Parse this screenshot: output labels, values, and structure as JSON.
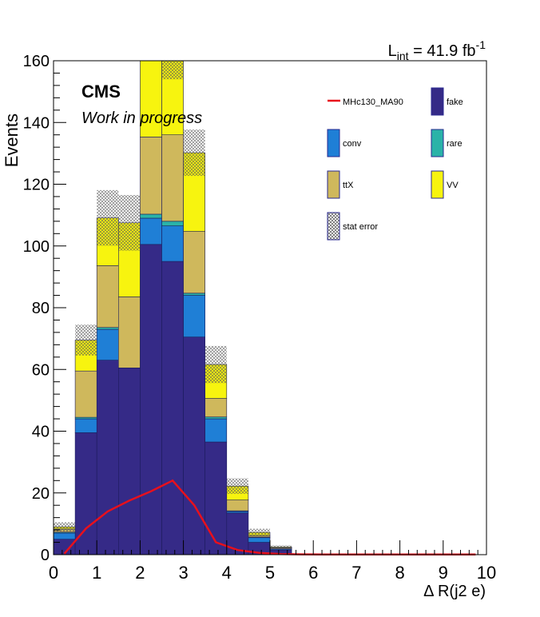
{
  "chart_data": {
    "type": "bar",
    "stacked": true,
    "title": "",
    "xlabel": "Δ R(j2 e)",
    "ylabel": "Events",
    "xlim": [
      0,
      10
    ],
    "ylim": [
      0,
      160
    ],
    "luminosity_label": "L",
    "luminosity_sub": "int",
    "luminosity_value": " = 41.9 fb",
    "luminosity_sup": "-1",
    "experiment_label": "CMS",
    "status_label": "Work in progress",
    "x_ticks": [
      "0",
      "1",
      "2",
      "3",
      "4",
      "5",
      "6",
      "7",
      "8",
      "9",
      "10"
    ],
    "y_ticks": [
      "0",
      "20",
      "40",
      "60",
      "80",
      "100",
      "120",
      "140",
      "160"
    ],
    "bin_edges": [
      0,
      0.5,
      1,
      1.5,
      2,
      2.5,
      3,
      3.5,
      4,
      4.5,
      5,
      5.5,
      6,
      6.5,
      7,
      7.5,
      8,
      8.5,
      9,
      9.5,
      10
    ],
    "series": [
      {
        "name": "fake",
        "color": "#352a87",
        "values": [
          5,
          39.5,
          63,
          60.5,
          100.5,
          95,
          70.5,
          36.5,
          13.5,
          4,
          1.5,
          0,
          0,
          0,
          0,
          0,
          0,
          0,
          0,
          0
        ]
      },
      {
        "name": "conv",
        "color": "#1f7fd6",
        "values": [
          2,
          4.5,
          10,
          0,
          8.5,
          11.5,
          13.5,
          7.5,
          0.5,
          1.5,
          0.3,
          0,
          0,
          0,
          0,
          0,
          0,
          0,
          0,
          0
        ]
      },
      {
        "name": "rare",
        "color": "#2ab3a8",
        "values": [
          0.3,
          0.5,
          0.6,
          0,
          1.3,
          1.5,
          0.7,
          0.6,
          0.2,
          0.2,
          0.1,
          0,
          0,
          0,
          0,
          0,
          0,
          0,
          0,
          0
        ]
      },
      {
        "name": "ttX",
        "color": "#cfb85c",
        "values": [
          1,
          15,
          20,
          23,
          25,
          28,
          20,
          6,
          3.5,
          0.5,
          0.3,
          0,
          0,
          0,
          0,
          0,
          0,
          0,
          0,
          0
        ]
      },
      {
        "name": "VV",
        "color": "#f7f40f",
        "values": [
          0.7,
          10,
          15.5,
          24,
          34.5,
          26.5,
          25.5,
          11,
          4.5,
          1,
          0.3,
          0,
          0,
          0,
          0,
          0,
          0,
          0,
          0,
          0
        ]
      }
    ],
    "stat_error": [
      1.5,
      5,
      9,
      9,
      9.5,
      8.5,
      7.5,
      6,
      2.5,
      1.2,
      0.5,
      0,
      0,
      0,
      0,
      0,
      0,
      0,
      0,
      0
    ],
    "signal": {
      "name": "MHc130_MA90",
      "color": "#e8101c",
      "x": [
        0.25,
        0.75,
        1.25,
        1.75,
        2.25,
        2.75,
        3.25,
        3.75,
        4.25,
        4.75,
        5.25,
        5.75,
        6.25,
        6.75,
        7.25,
        7.75,
        8.25,
        8.75,
        9.25,
        9.75
      ],
      "y": [
        0.3,
        8.5,
        14,
        17.5,
        20.5,
        24,
        16,
        4,
        1.5,
        0.6,
        0.2,
        0.1,
        0.05,
        0.05,
        0.05,
        0.05,
        0.05,
        0.05,
        0.05,
        0.05
      ]
    },
    "legend": {
      "placement": "top-right",
      "entries": [
        {
          "label": "MHc130_MA90",
          "kind": "line",
          "color": "#e8101c"
        },
        {
          "label": "fake",
          "kind": "box",
          "color": "#352a87"
        },
        {
          "label": "conv",
          "kind": "box",
          "color": "#1f7fd6"
        },
        {
          "label": "rare",
          "kind": "box",
          "color": "#2ab3a8"
        },
        {
          "label": "ttX",
          "kind": "box",
          "color": "#cfb85c"
        },
        {
          "label": "VV",
          "kind": "box",
          "color": "#f7f40f"
        },
        {
          "label": "stat error",
          "kind": "hatch",
          "color": "#888888"
        }
      ]
    },
    "grid": false
  }
}
